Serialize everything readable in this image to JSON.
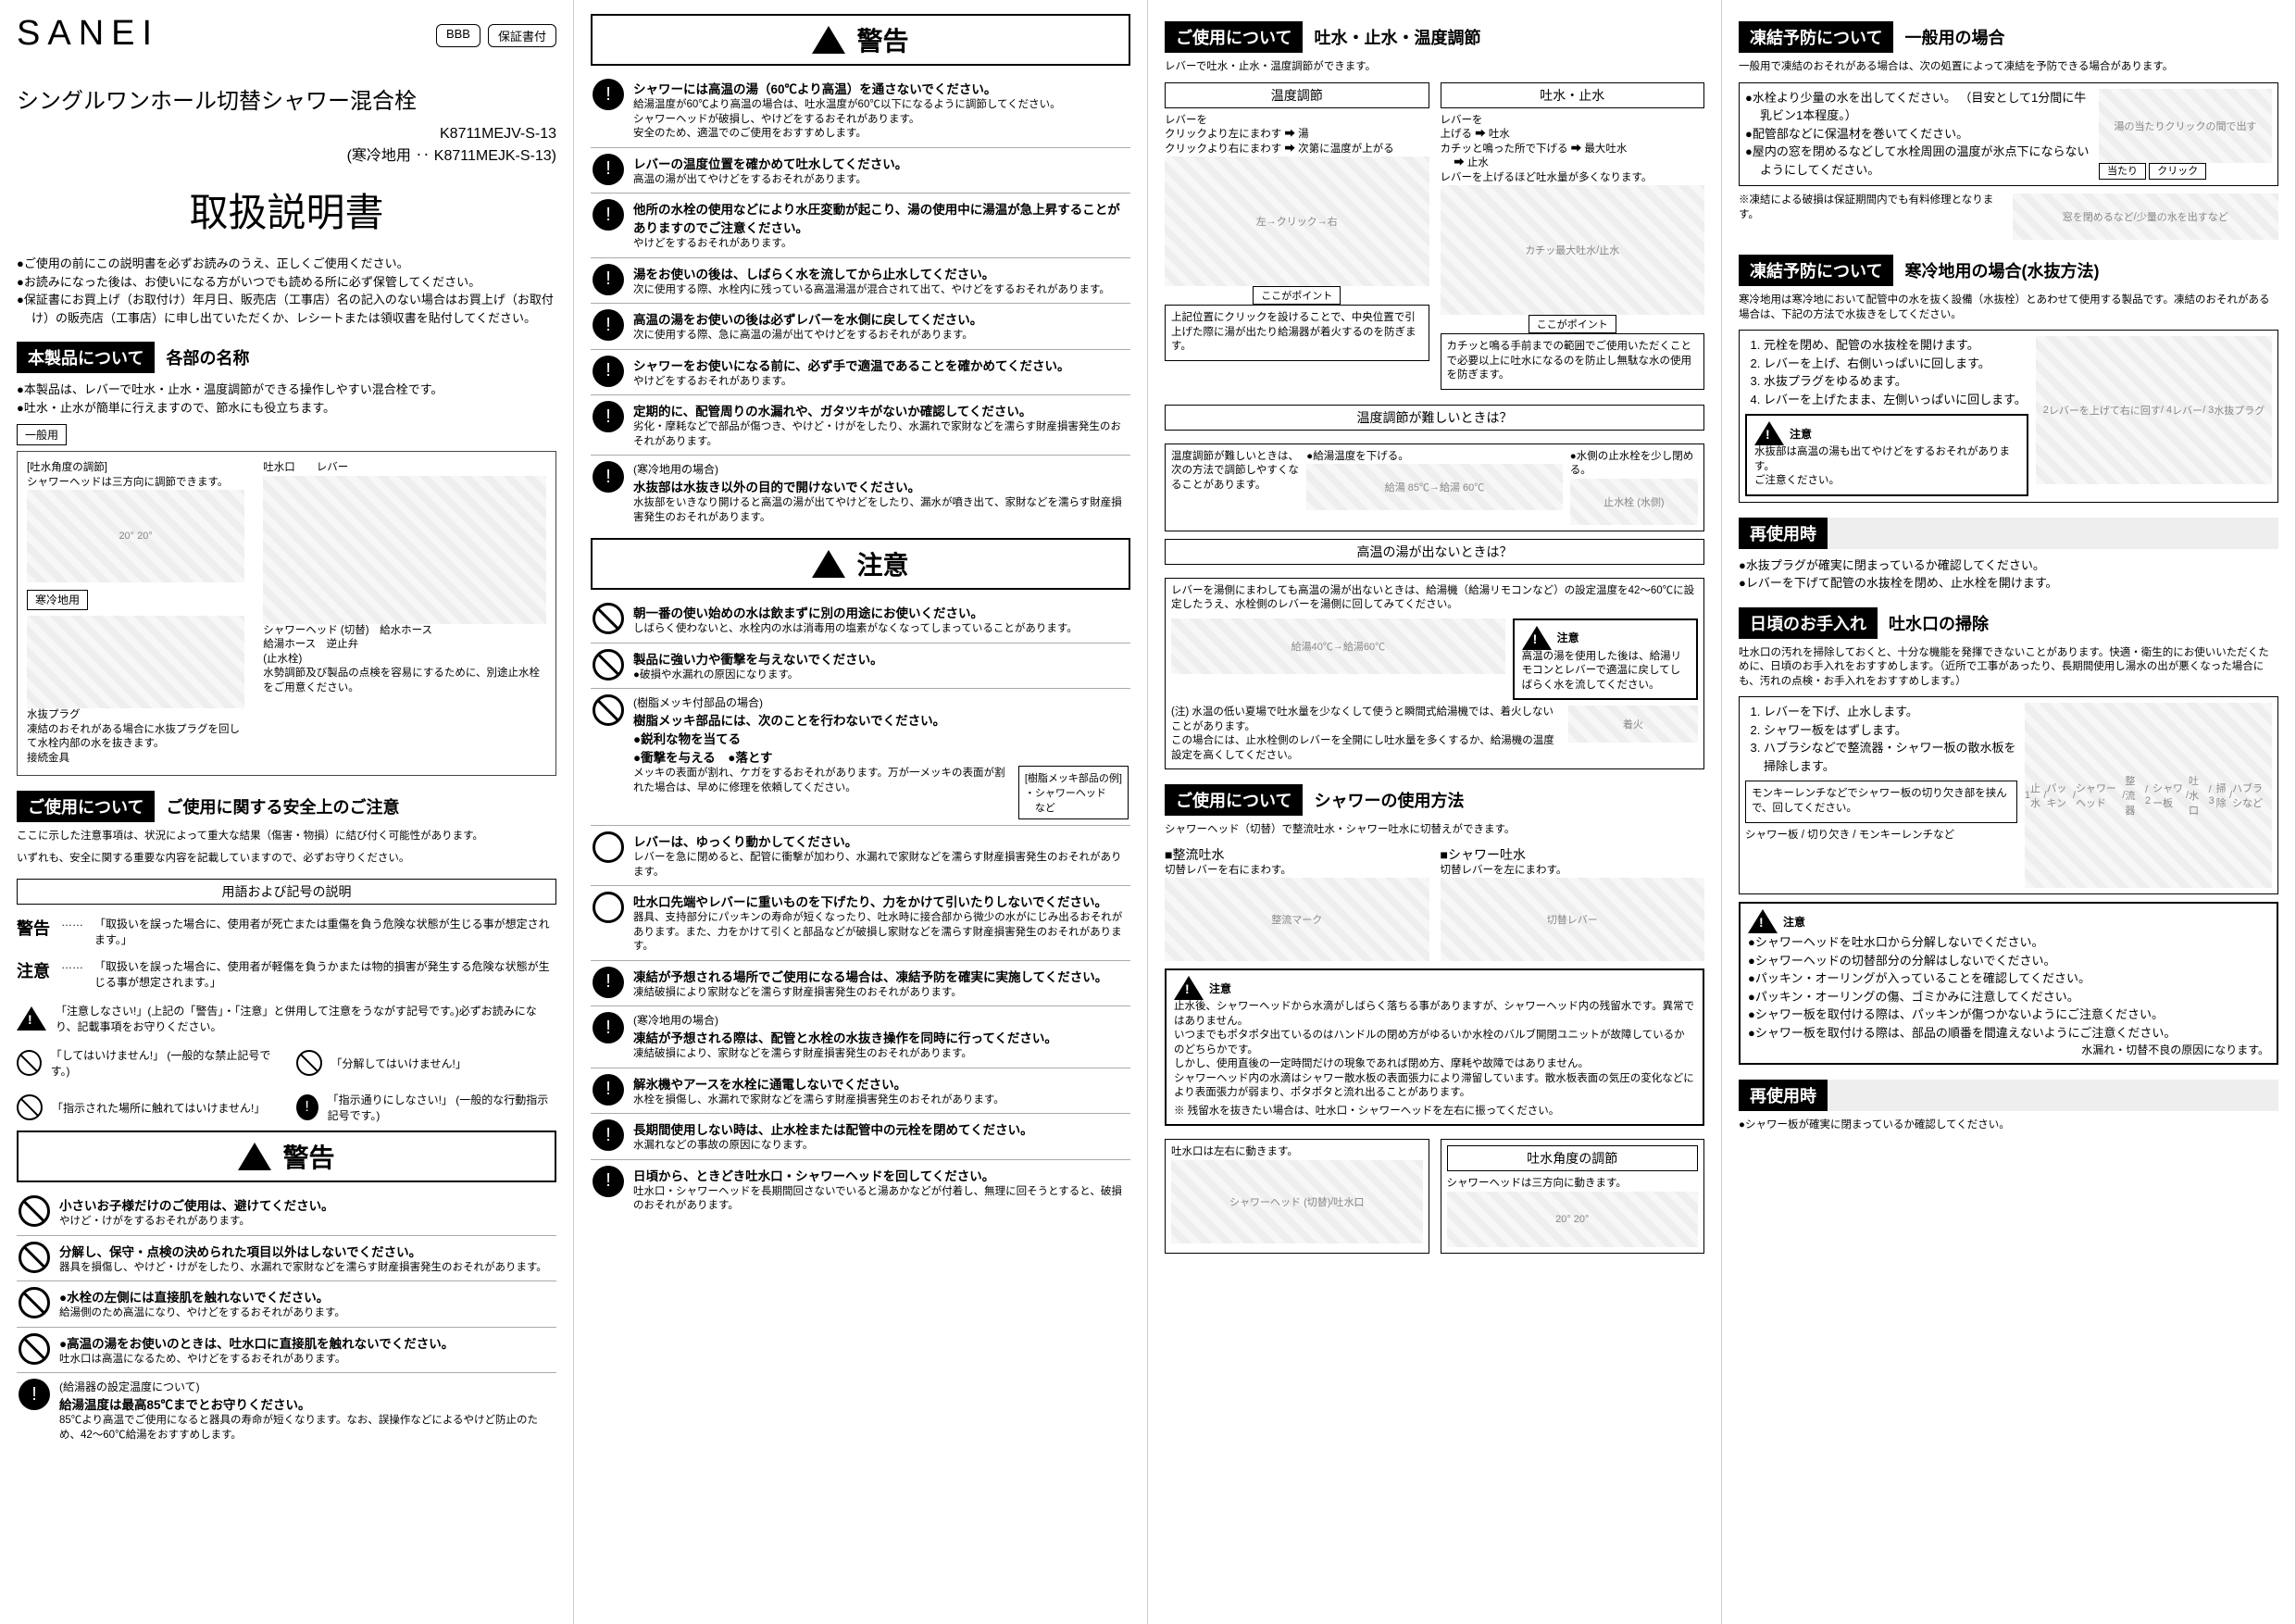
{
  "brand": "SANEI",
  "tags": {
    "bbb": "BBB",
    "warranty": "保証書付"
  },
  "product_title": "シングルワンホール切替シャワー混合栓",
  "models": {
    "main": "K8711MEJV-S-13",
    "cold": "(寒冷地用 ‥ K8711MEJK-S-13)"
  },
  "manual_title": "取扱説明書",
  "intro_bullets": [
    "ご使用の前にこの説明書を必ずお読みのうえ、正しくご使用ください。",
    "お読みになった後は、お使いになる方がいつでも読める所に必ず保管してください。",
    "保証書にお買上げ（お取付け）年月日、販売店（工事店）名の記入のない場合はお買上げ（お取付け）の販売店（工事店）に申し出ていただくか、レシートまたは領収書を貼付してください。"
  ],
  "parts": {
    "header_dark": "本製品について",
    "header_sub": "各部の名称",
    "features": [
      "本製品は、レバーで吐水・止水・温度調節ができる操作しやすい混合栓です。",
      "吐水・止水が簡単に行えますので、節水にも役立ちます。"
    ],
    "general_label": "一般用",
    "cold_label": "寒冷地用",
    "labels": {
      "angle": "[吐水角度の調節]",
      "head3": "シャワーヘッドは三方向に調節できます。",
      "deg": "20°",
      "outlet": "吐水口",
      "lever": "レバー",
      "head": "シャワーヘッド\n(切替)",
      "hose": "給水ホース",
      "drain": "水抜プラグ",
      "hotcon": "給湯ホース",
      "check": "逆止弁",
      "stop": "(止水栓)",
      "bracket": "接続金具",
      "plug_note": "凍結のおそれがある場合に水抜プラグを回して水栓内部の水を抜きます。",
      "adj_note": "水勢調節及び製品の点検を容易にするために、別途止水栓をご用意ください。"
    }
  },
  "safety": {
    "header_dark": "ご使用について",
    "header_sub": "ご使用に関する安全上のご注意",
    "lead1": "ここに示した注意事項は、状況によって重大な結果（傷害・物損）に結び付く可能性があります。",
    "lead2": "いずれも、安全に関する重要な内容を記載していますので、必ずお守りください。",
    "terms_title": "用語および記号の説明",
    "warn_term": "警告",
    "warn_def": "「取扱いを誤った場合に、使用者が死亡または重傷を負う危険な状態が生じる事が想定されます。」",
    "caution_term": "注意",
    "caution_def": "「取扱いを誤った場合に、使用者が軽傷を負うかまたは物的損害が発生する危険な状態が生じる事が想定されます。」",
    "tri_def": "「注意しなさい!」(上記の「警告」・「注意」と併用して注意をうながす記号です。)必ずお読みになり、記載事項をお守りください。",
    "pro_def1": "「してはいけません!」\n(一般的な禁止記号です。)",
    "pro_def2": "「分解してはいけません!」",
    "pro_def3": "「指示された場所に触れてはいけません!」",
    "mand_def": "「指示通りにしなさい!」\n(一般的な行動指示記号です。)"
  },
  "warning_banner": "警告",
  "caution_banner": "注意",
  "col1_warnings": [
    {
      "icon": "prohibit",
      "head": "小さいお子様だけのご使用は、避けてください。",
      "desc": "やけど・けがをするおそれがあります。"
    },
    {
      "icon": "prohibit",
      "head": "分解し、保守・点検の決められた項目以外はしないでください。",
      "desc": "器具を損傷し、やけど・けがをしたり、水漏れで家財などを濡らす財産損害発生のおそれがあります。"
    },
    {
      "icon": "prohibit",
      "head": "●水栓の左側には直接肌を触れないでください。",
      "desc": "給湯側のため高温になり、やけどをするおそれがあります。"
    },
    {
      "icon": "prohibit",
      "head": "●高温の湯をお使いのときは、吐水口に直接肌を触れないでください。",
      "desc": "吐水口は高温になるため、やけどをするおそれがあります。"
    },
    {
      "icon": "mandatory",
      "subhead": "(給湯器の設定温度について)",
      "head": "給湯温度は最高85℃までとお守りください。",
      "desc": "85℃より高温でご使用になると器具の寿命が短くなります。なお、誤操作などによるやけど防止のため、42～60℃給湯をおすすめします。"
    }
  ],
  "col2_warnings": [
    {
      "icon": "mandatory",
      "head": "シャワーには高温の湯（60℃より高温）を通さないでください。",
      "desc": "給湯温度が60℃より高温の場合は、吐水温度が60℃以下になるように調節してください。\nシャワーヘッドが破損し、やけどをするおそれがあります。\n安全のため、適温でのご使用をおすすめします。"
    },
    {
      "icon": "mandatory",
      "head": "レバーの温度位置を確かめて吐水してください。",
      "desc": "高温の湯が出てやけどをするおそれがあります。"
    },
    {
      "icon": "mandatory",
      "head": "他所の水栓の使用などにより水圧変動が起こり、湯の使用中に湯温が急上昇することがありますのでご注意ください。",
      "desc": "やけどをするおそれがあります。"
    },
    {
      "icon": "mandatory",
      "head": "湯をお使いの後は、しばらく水を流してから止水してください。",
      "desc": "次に使用する際、水栓内に残っている高温湯温が混合されて出て、やけどをするおそれがあります。"
    },
    {
      "icon": "mandatory",
      "head": "高温の湯をお使いの後は必ずレバーを水側に戻してください。",
      "desc": "次に使用する際、急に高温の湯が出てやけどをするおそれがあります。"
    },
    {
      "icon": "mandatory",
      "head": "シャワーをお使いになる前に、必ず手で適温であることを確かめてください。",
      "desc": "やけどをするおそれがあります。"
    },
    {
      "icon": "mandatory",
      "head": "定期的に、配管周りの水漏れや、ガタツキがないか確認してください。",
      "desc": "劣化・摩耗などで部品が傷つき、やけど・けがをしたり、水漏れで家財などを濡らす財産損害発生のおそれがあります。"
    },
    {
      "icon": "mandatory",
      "subhead": "(寒冷地用の場合)",
      "head": "水抜部は水抜き以外の目的で開けないでください。",
      "desc": "水抜部をいきなり開けると高温の湯が出てやけどをしたり、漏水が噴き出て、家財などを濡らす財産損害発生のおそれがあります。"
    }
  ],
  "col2_cautions": [
    {
      "icon": "prohibit",
      "head": "朝一番の使い始めの水は飲まずに別の用途にお使いください。",
      "desc": "しばらく使わないと、水栓内の水は消毒用の塩素がなくなってしまっていることがあります。"
    },
    {
      "icon": "prohibit",
      "head": "製品に強い力や衝撃を与えないでください。",
      "desc": "●破損や水漏れの原因になります。"
    },
    {
      "icon": "prohibit",
      "subhead": "(樹脂メッキ付部品の場合)",
      "head": "樹脂メッキ部品には、次のことを行わないでください。\n●鋭利な物を当てる\n●衝撃を与える　●落とす",
      "desc": "メッキの表面が割れ、ケガをするおそれがあります。万が一メッキの表面が割れた場合は、早めに修理を依頼してください。",
      "resin_box": "[樹脂メッキ部品の例]\n・シャワーヘッド\n　など"
    },
    {
      "icon": "caution",
      "head": "レバーは、ゆっくり動かしてください。",
      "desc": "レバーを急に閉めると、配管に衝撃が加わり、水漏れで家財などを濡らす財産損害発生のおそれがあります。"
    },
    {
      "icon": "caution",
      "head": "吐水口先端やレバーに重いものを下げたり、力をかけて引いたりしないでください。",
      "desc": "器具、支持部分にパッキンの寿命が短くなったり、吐水時に接合部から微少の水がにじみ出るおそれがあります。また、力をかけて引くと部品などが破損し家財などを濡らす財産損害発生のおそれがあります。"
    },
    {
      "icon": "mandatory",
      "head": "凍結が予想される場所でご使用になる場合は、凍結予防を確実に実施してください。",
      "desc": "凍結破損により家財などを濡らす財産損害発生のおそれがあります。"
    },
    {
      "icon": "mandatory",
      "subhead": "(寒冷地用の場合)",
      "head": "凍結が予想される際は、配管と水栓の水抜き操作を同時に行ってください。",
      "desc": "凍結破損により、家財などを濡らす財産損害発生のおそれがあります。"
    },
    {
      "icon": "mandatory",
      "head": "解氷機やアースを水栓に通電しないでください。",
      "desc": "水栓を損傷し、水漏れで家財などを濡らす財産損害発生のおそれがあります。"
    },
    {
      "icon": "mandatory",
      "head": "長期間使用しない時は、止水栓または配管中の元栓を閉めてください。",
      "desc": "水漏れなどの事故の原因になります。"
    },
    {
      "icon": "mandatory",
      "head": "日頃から、ときどき吐水口・シャワーヘッドを回してください。",
      "desc": "吐水口・シャワーヘッドを長期間回さないでいると湯あかなどが付着し、無理に回そうとすると、破損のおそれがあります。"
    }
  ],
  "usage_flow": {
    "header_dark": "ご使用について",
    "header_sub": "吐水・止水・温度調節",
    "lead": "レバーで吐水・止水・温度調節ができます。",
    "temp_title": "温度調節",
    "temp_body": "レバーを\nクリックより左にまわす ➡ 湯\nクリックより右にまわす ➡ 次第に温度が上がる",
    "left": "左",
    "right": "右",
    "click": "クリック",
    "temp_point_l": "ここがポイント",
    "temp_note": "上記位置にクリックを設けることで、中央位置で引上げた際に湯が出たり給湯器が着火するのを防ぎます。",
    "flow_title": "吐水・止水",
    "flow_body": "レバーを\n上げる ➡ 吐水\nカチッと鳴った所で下げる ➡ 最大吐水\n　 ➡ 止水\nレバーを上げるほど吐水量が多くなります。",
    "max": "最大吐水",
    "stop": "止水",
    "kacchi": "カチッ",
    "flow_note": "カチッと鳴る手前までの範囲でご使用いただくことで必要以上に吐水になるのを防止し無駄な水の使用を防ぎます。"
  },
  "temp_diff": {
    "title": "温度調節が難しいときは？",
    "body": "温度調節が難しいときは、次の方法で調節しやすくなることがあります。",
    "m1": "●給湯温度を下げる。",
    "m2": "●水側の止水栓を少し閉める。",
    "hot85": "給湯 85℃",
    "hot60": "給湯 60℃",
    "stopvalve": "止水栓\n(水側)"
  },
  "no_hot": {
    "title": "高温の湯が出ないときは？",
    "body": "レバーを湯側にまわしても高温の湯が出ないときは、給湯機（給湯リモコンなど）の設定温度を42～60℃に設定したうえ、水栓側のレバーを湯側に回してみてください。",
    "a": "給湯40℃",
    "b": "給湯60℃",
    "caution": "注意",
    "caution_body": "高温の湯を使用した後は、給湯リモコンとレバーで適温に戻してしばらく水を流してください。",
    "note": "(注) 水温の低い夏場で吐水量を少なくして使うと瞬間式給湯機では、着火しないことがあります。\nこの場合には、止水栓側のレバーを全開にし吐水量を多くするか、給湯機の温度設定を高くしてください。",
    "fire": "着火"
  },
  "shower_use": {
    "header_dark": "ご使用について",
    "header_sub": "シャワーの使用方法",
    "lead": "シャワーヘッド（切替）で整流吐水・シャワー吐水に切替えができます。",
    "straight": "■整流吐水",
    "straight_act": "切替レバーを右にまわす。",
    "shower": "■シャワー吐水",
    "shower_act": "切替レバーを左にまわす。",
    "mark_s": "整流マーク",
    "lever": "切替レバー",
    "caution": "注意",
    "c1": "止水後、シャワーヘッドから水滴がしばらく落ちる事がありますが、シャワーヘッド内の残留水です。異常ではありません。\nいつまでもポタポタ出ているのはハンドルの閉め方がゆるいか水栓のバルブ開閉ユニットが故障しているかのどちらかです。\nしかし、使用直後の一定時間だけの現象であれば閉め方、摩耗や故障ではありません。\nシャワーヘッド内の水滴はシャワー散水板の表面張力により滞留しています。散水板表面の気圧の変化などにより表面張力が弱まり、ポタポタと流れ出ることがあります。",
    "c2": "※ 残留水を抜きたい場合は、吐水口・シャワーヘッドを左右に振ってください。",
    "outlet_lead": "吐水口は左右に動きます。",
    "angle_title": "吐水角度の調節",
    "angle_body": "シャワーヘッドは三方向に動きます。",
    "head": "シャワーヘッド\n(切替)",
    "outlet": "吐水口",
    "deg": "20°"
  },
  "freeze_gen": {
    "header_dark": "凍結予防について",
    "header_sub": "一般用の場合",
    "lead": "一般用で凍結のおそれがある場合は、次の処置によって凍結を予防できる場合があります。",
    "b1": "水栓より少量の水を出してください。\n（目安として1分間に牛乳ビン1本程度。）",
    "b2": "配管部などに保温材を巻いてください。",
    "b3": "屋内の窓を閉めるなどして水栓周囲の温度が氷点下にならないようにしてください。",
    "note": "※凍結による破損は保証期間内でも有料修理となります。",
    "hit": "湯の当たりクリックの間で出す",
    "l1": "当たり",
    "l2": "クリック",
    "win": "窓を閉めるなど",
    "drip": "少量の水を出すなど"
  },
  "freeze_cold": {
    "header_dark": "凍結予防について",
    "header_sub": "寒冷地用の場合(水抜方法)",
    "lead": "寒冷地用は寒冷地において配管中の水を抜く設備（水抜栓）とあわせて使用する製品です。凍結のおそれがある場合は、下記の方法で水抜きをしてください。",
    "steps": [
      "元栓を閉め、配管の水抜栓を開けます。",
      "レバーを上げ、右側いっぱいに回します。",
      "水抜プラグをゆるめます。",
      "レバーを上げたまま、左側いっぱいに回します。"
    ],
    "caution": "注意",
    "caution_body": "水抜部は高温の湯も出てやけどをするおそれがあります。\nご注意ください。",
    "labels": {
      "l2": "レバーを上げて右に回す",
      "l4": "レバー",
      "l3": "水抜プラグ"
    },
    "reuse": "再使用時",
    "reuse_b": [
      "水抜プラグが確実に閉まっているか確認してください。",
      "レバーを下げて配管の水抜栓を閉め、止水栓を開けます。"
    ]
  },
  "cleaning": {
    "header_dark": "日頃のお手入れ",
    "header_sub": "吐水口の掃除",
    "lead": "吐水口の汚れを掃除しておくと、十分な機能を発揮できないことがあります。快適・衛生的にお使いいただくために、日頃のお手入れをおすすめします。（近所で工事があったり、長期間使用し湯水の出が悪くなった場合にも、汚れの点検・お手入れをおすすめします。）",
    "steps": [
      "レバーを下げ、止水します。",
      "シャワー板をはずします。",
      "ハブラシなどで整流器・シャワー板の散水板を掃除します。"
    ],
    "tool": "モンキーレンチなどでシャワー板の切り欠き部を挟んで、回してください。",
    "labels": {
      "stop": "止水",
      "pack": "パッキン",
      "head": "シャワーヘッド",
      "board": "シャワー板",
      "notch": "切り欠き",
      "wrench": "モンキーレンチなど",
      "straight": "整流器",
      "outlet": "吐水口",
      "clean": "掃除",
      "brush": "ハブラシなど"
    },
    "caution": "注意",
    "c_bullets": [
      "シャワーヘッドを吐水口から分解しないでください。",
      "シャワーヘッドの切替部分の分解はしないでください。",
      "パッキン・オーリングが入っていることを確認してください。",
      "パッキン・オーリングの傷、ゴミかみに注意してください。",
      "シャワー板を取付ける際は、パッキンが傷つかないようにご注意ください。",
      "シャワー板を取付ける際は、部品の順番を間違えないようにご注意ください。"
    ],
    "leak": "水漏れ・切替不良の原因になります。",
    "reuse": "再使用時",
    "reuse_body": "●シャワー板が確実に閉まっているか確認してください。"
  }
}
